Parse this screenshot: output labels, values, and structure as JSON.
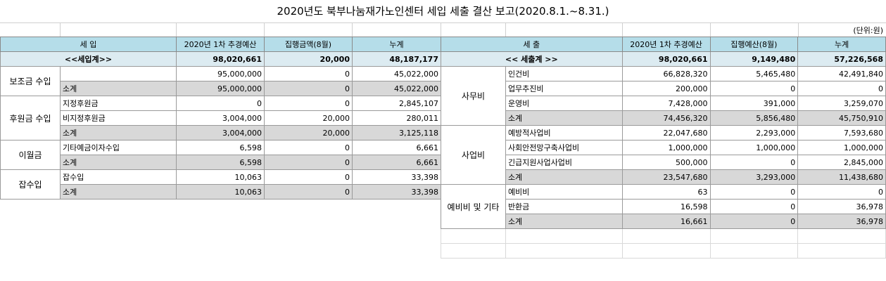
{
  "title": "2020년도 북부나눔재가노인센터 세입 세출 결산 보고(2020.8.1.~8.31.)",
  "unit": "(단위:원)",
  "income": {
    "headers": {
      "item": "세 입",
      "budget": "2020년 1차 추경예산",
      "exec": "집행금액(8월)",
      "cum": "누계"
    },
    "total": {
      "label": "<<세입계>>",
      "budget": "98,020,661",
      "exec": "20,000",
      "cum": "48,187,177"
    },
    "groups": [
      {
        "name": "보조금 수입",
        "rows": [
          {
            "label": "",
            "budget": "95,000,000",
            "exec": "0",
            "cum": "45,022,000",
            "sub": false
          },
          {
            "label": "소계",
            "budget": "95,000,000",
            "exec": "0",
            "cum": "45,022,000",
            "sub": true
          }
        ]
      },
      {
        "name": "후원금 수입",
        "rows": [
          {
            "label": "지정후원금",
            "budget": "0",
            "exec": "0",
            "cum": "2,845,107",
            "sub": false
          },
          {
            "label": "비지정후원금",
            "budget": "3,004,000",
            "exec": "20,000",
            "cum": "280,011",
            "sub": false
          },
          {
            "label": "소계",
            "budget": "3,004,000",
            "exec": "20,000",
            "cum": "3,125,118",
            "sub": true
          }
        ]
      },
      {
        "name": "이월금",
        "rows": [
          {
            "label": "기타예금이자수입",
            "budget": "6,598",
            "exec": "0",
            "cum": "6,661",
            "sub": false
          },
          {
            "label": "소계",
            "budget": "6,598",
            "exec": "0",
            "cum": "6,661",
            "sub": true
          }
        ]
      },
      {
        "name": "잡수입",
        "rows": [
          {
            "label": "잡수입",
            "budget": "10,063",
            "exec": "0",
            "cum": "33,398",
            "sub": false
          },
          {
            "label": "소계",
            "budget": "10,063",
            "exec": "0",
            "cum": "33,398",
            "sub": true
          }
        ]
      }
    ]
  },
  "expense": {
    "headers": {
      "item": "세 출",
      "budget": "2020년 1차 추경예산",
      "exec": "집행예산(8월)",
      "cum": "누계"
    },
    "total": {
      "label": "<< 세출계 >>",
      "budget": "98,020,661",
      "exec": "9,149,480",
      "cum": "57,226,568"
    },
    "groups": [
      {
        "name": "사무비",
        "rows": [
          {
            "label": "인건비",
            "budget": "66,828,320",
            "exec": "5,465,480",
            "cum": "42,491,840",
            "sub": false
          },
          {
            "label": "업무추진비",
            "budget": "200,000",
            "exec": "0",
            "cum": "0",
            "sub": false
          },
          {
            "label": "운영비",
            "budget": "7,428,000",
            "exec": "391,000",
            "cum": "3,259,070",
            "sub": false
          },
          {
            "label": "소계",
            "budget": "74,456,320",
            "exec": "5,856,480",
            "cum": "45,750,910",
            "sub": true
          }
        ]
      },
      {
        "name": "사업비",
        "rows": [
          {
            "label": "예방적사업비",
            "budget": "22,047,680",
            "exec": "2,293,000",
            "cum": "7,593,680",
            "sub": false
          },
          {
            "label": "사회안전망구축사업비",
            "budget": "1,000,000",
            "exec": "1,000,000",
            "cum": "1,000,000",
            "sub": false
          },
          {
            "label": "긴급지원사업사업비",
            "budget": "500,000",
            "exec": "0",
            "cum": "2,845,000",
            "sub": false
          },
          {
            "label": "소계",
            "budget": "23,547,680",
            "exec": "3,293,000",
            "cum": "11,438,680",
            "sub": true
          }
        ]
      },
      {
        "name": "예비비 및 기타",
        "rows": [
          {
            "label": "예비비",
            "budget": "63",
            "exec": "0",
            "cum": "0",
            "sub": false
          },
          {
            "label": "반환금",
            "budget": "16,598",
            "exec": "0",
            "cum": "36,978",
            "sub": false
          },
          {
            "label": "소계",
            "budget": "16,661",
            "exec": "0",
            "cum": "36,978",
            "sub": true
          }
        ]
      }
    ]
  },
  "colors": {
    "header": "#b5dde9",
    "total": "#dcebf1",
    "subtotal": "#d8d8d8"
  }
}
